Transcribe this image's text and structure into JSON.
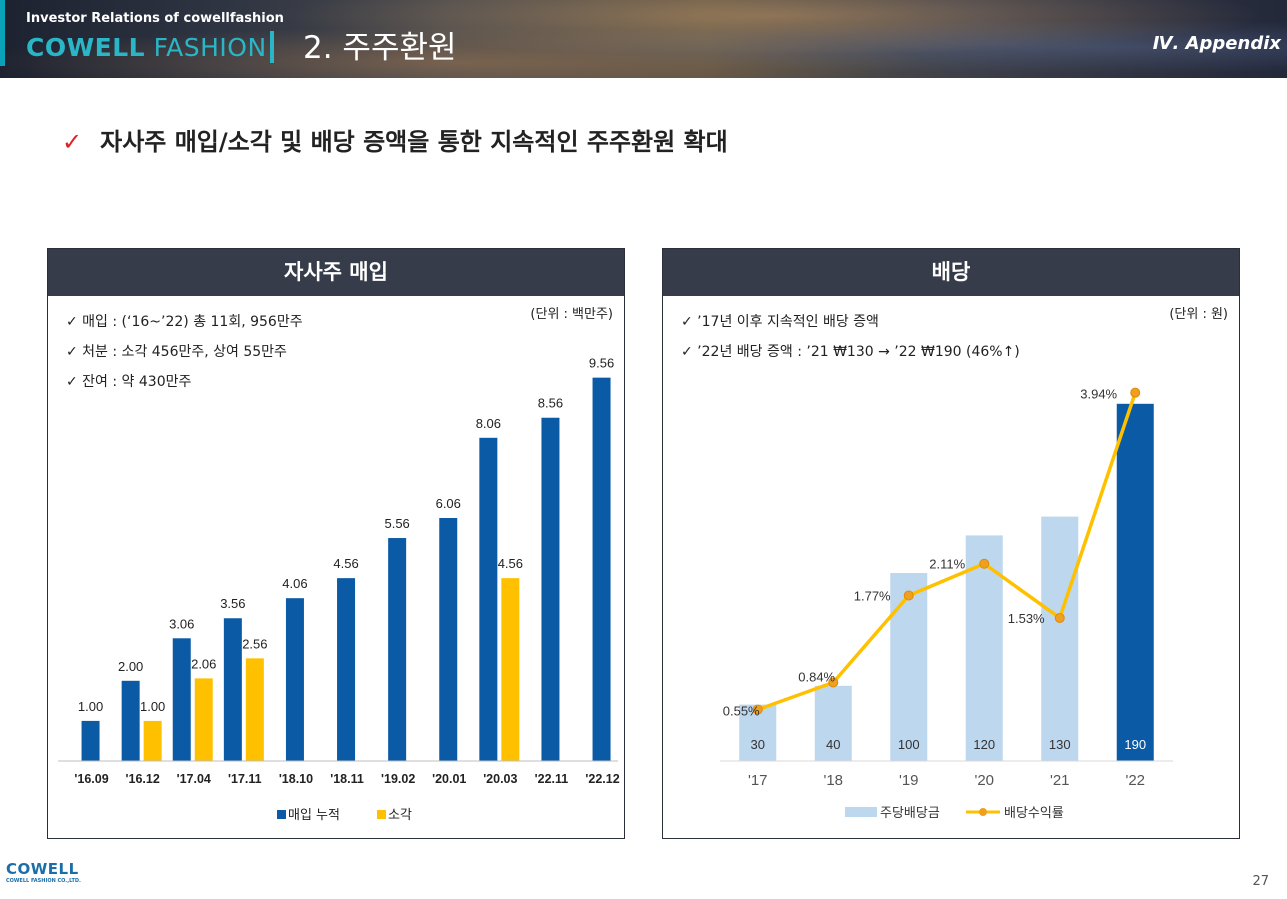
{
  "header": {
    "ir": "Investor Relations of cowellfashion",
    "logo_bold": "COWELL",
    "logo_light": " FASHION",
    "section": "2. 주주환원",
    "appendix": "Ⅳ. Appendix"
  },
  "headline": {
    "check": "✓",
    "text": "자사주 매입/소각 및 배당 증액을 통한 지속적인 주주환원 확대"
  },
  "left_panel": {
    "title": "자사주 매입",
    "unit": "(단위 : 백만주)",
    "bullets": [
      "✓  매입 : (‘16~’22) 총 11회, 956만주",
      "✓  처분 : 소각 456만주, 상여 55만주",
      "✓  잔여 : 약 430만주"
    ]
  },
  "right_panel": {
    "title": "배당",
    "unit": "(단위 : 원)",
    "bullets": [
      "✓  ’17년 이후 지속적인 배당 증액",
      "✓  ’22년 배당 증액 : ’21 ₩130 → ’22 ₩190 (46%↑)"
    ]
  },
  "chart_data": [
    {
      "type": "bar",
      "categories": [
        "'16.09",
        "'16.12",
        "'17.04",
        "'17.11",
        "'18.10",
        "'18.11",
        "'19.02",
        "'20.01",
        "'20.03",
        "'22.11",
        "'22.12"
      ],
      "series": [
        {
          "name": "매입 누적",
          "color": "#0a5aa5",
          "values": [
            1.0,
            2.0,
            3.06,
            3.56,
            4.06,
            4.56,
            5.56,
            6.06,
            8.06,
            8.56,
            9.56
          ]
        },
        {
          "name": "소각",
          "color": "#ffc000",
          "values": [
            null,
            1.0,
            2.06,
            2.56,
            null,
            null,
            null,
            null,
            4.56,
            null,
            null
          ]
        }
      ],
      "ylim": [
        0,
        10
      ]
    },
    {
      "type": "bar",
      "categories": [
        "'17",
        "'18",
        "'19",
        "'20",
        "'21",
        "'22"
      ],
      "series": [
        {
          "name": "주당배당금",
          "color": "#bdd7ee",
          "highlight_color": "#0a5aa5",
          "values": [
            30,
            40,
            100,
            120,
            130,
            190
          ]
        },
        {
          "name": "배당수익률",
          "type": "line",
          "color": "#ffc000",
          "marker_color": "#f0a020",
          "values": [
            0.55,
            0.84,
            1.77,
            2.11,
            1.53,
            3.94
          ],
          "labels": [
            "0.55%",
            "0.84%",
            "1.77%",
            "2.11%",
            "1.53%",
            "3.94%"
          ]
        }
      ],
      "ylim_bar": [
        0,
        200
      ],
      "ylim_line": [
        0,
        4.3
      ]
    }
  ],
  "footer": {
    "logo": "COWELL",
    "logo_sub": "COWELL FASHION CO.,LTD.",
    "page": "27"
  }
}
